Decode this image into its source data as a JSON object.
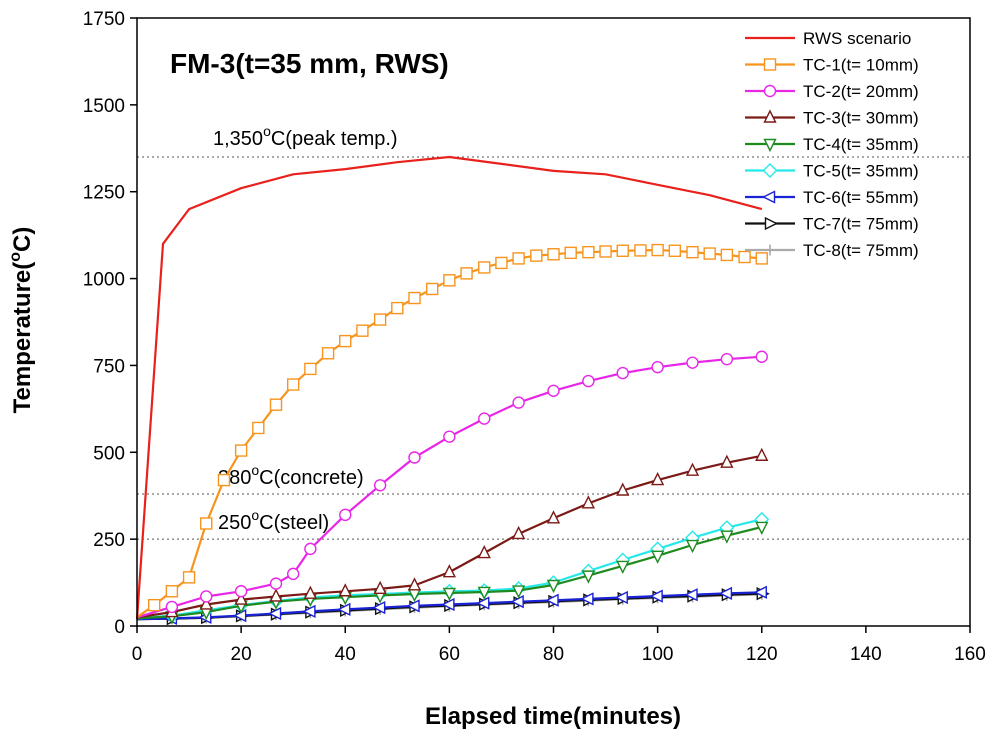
{
  "chart_data": {
    "type": "line",
    "title": "FM-3(t=35 mm, RWS)",
    "xlabel": "Elapsed time(minutes)",
    "ylabel": "Temperature(°C)",
    "xlim": [
      0,
      160
    ],
    "ylim": [
      0,
      1750
    ],
    "xticks": [
      "0",
      "20",
      "40",
      "60",
      "80",
      "100",
      "120",
      "140",
      "160"
    ],
    "yticks": [
      "0",
      "250",
      "500",
      "750",
      "1000",
      "1250",
      "1500",
      "1750"
    ],
    "grid": false,
    "legend_position": "top-right",
    "reference_lines": [
      {
        "y": 1350,
        "label": "1,350°C(peak temp.)"
      },
      {
        "y": 380,
        "label": "380°C(concrete)"
      },
      {
        "y": 250,
        "label": "250°C(steel)"
      }
    ],
    "series": [
      {
        "name": "RWS scenario",
        "color": "#e8211c",
        "marker": "none",
        "x": [
          0,
          5,
          10,
          20,
          30,
          40,
          50,
          60,
          70,
          80,
          90,
          100,
          110,
          120
        ],
        "y": [
          20,
          1100,
          1200,
          1260,
          1300,
          1315,
          1335,
          1350,
          1330,
          1310,
          1300,
          1270,
          1240,
          1200
        ]
      },
      {
        "name": "TC-1(t= 10mm)",
        "color": "#f7941d",
        "marker": "square",
        "x": [
          0,
          3.3,
          6.7,
          10,
          13.3,
          16.7,
          20,
          23.3,
          26.7,
          30,
          33.3,
          36.7,
          40,
          43.3,
          46.7,
          50,
          53.3,
          56.7,
          60,
          63.3,
          66.7,
          70,
          73.3,
          76.7,
          80,
          83.3,
          86.7,
          90,
          93.3,
          96.7,
          100,
          103.3,
          106.7,
          110,
          113.3,
          116.7,
          120
        ],
        "y": [
          25,
          60,
          100,
          140,
          295,
          420,
          505,
          570,
          637,
          695,
          740,
          785,
          820,
          850,
          882,
          915,
          944,
          970,
          995,
          1015,
          1032,
          1045,
          1058,
          1066,
          1070,
          1074,
          1076,
          1078,
          1080,
          1081,
          1082,
          1080,
          1076,
          1072,
          1068,
          1062,
          1058
        ]
      },
      {
        "name": "TC-2(t= 20mm)",
        "color": "#e826e8",
        "marker": "circle",
        "x": [
          0,
          6.7,
          13.3,
          20,
          26.7,
          30,
          33.3,
          40,
          46.7,
          53.3,
          60,
          66.7,
          73.3,
          80,
          86.7,
          93.3,
          100,
          106.7,
          113.3,
          120
        ],
        "y": [
          25,
          55,
          85,
          100,
          122,
          150,
          222,
          320,
          405,
          485,
          545,
          597,
          643,
          677,
          705,
          728,
          745,
          758,
          768,
          775
        ]
      },
      {
        "name": "TC-3(t= 30mm)",
        "color": "#7b1a16",
        "marker": "triangle-up",
        "x": [
          0,
          6.7,
          13.3,
          20,
          26.7,
          33.3,
          40,
          46.7,
          53.3,
          60,
          66.7,
          73.3,
          80,
          86.7,
          93.3,
          100,
          106.7,
          113.3,
          120
        ],
        "y": [
          25,
          40,
          62,
          76,
          85,
          93,
          100,
          107,
          117,
          155,
          210,
          265,
          310,
          353,
          390,
          420,
          447,
          470,
          490
        ]
      },
      {
        "name": "TC-4(t= 35mm)",
        "color": "#1f8a1f",
        "marker": "triangle-down",
        "x": [
          0,
          6.7,
          13.3,
          20,
          26.7,
          33.3,
          40,
          46.7,
          53.3,
          60,
          66.7,
          73.3,
          80,
          86.7,
          93.3,
          100,
          106.7,
          113.3,
          120
        ],
        "y": [
          22,
          28,
          40,
          58,
          70,
          78,
          83,
          88,
          92,
          95,
          98,
          102,
          118,
          145,
          173,
          202,
          233,
          260,
          285
        ]
      },
      {
        "name": "TC-5(t= 35mm)",
        "color": "#26e8e8",
        "marker": "diamond",
        "x": [
          0,
          6.7,
          13.3,
          20,
          26.7,
          33.3,
          40,
          46.7,
          53.3,
          60,
          66.7,
          73.3,
          80,
          86.7,
          93.3,
          100,
          106.7,
          113.3,
          120
        ],
        "y": [
          22,
          30,
          45,
          60,
          72,
          82,
          88,
          92,
          96,
          100,
          102,
          108,
          125,
          158,
          190,
          222,
          254,
          283,
          307
        ]
      },
      {
        "name": "TC-6(t= 55mm)",
        "color": "#1a22d6",
        "marker": "triangle-left",
        "x": [
          0,
          6.7,
          13.3,
          20,
          26.7,
          33.3,
          40,
          46.7,
          53.3,
          60,
          66.7,
          73.3,
          80,
          86.7,
          93.3,
          100,
          106.7,
          113.3,
          120
        ],
        "y": [
          20,
          22,
          25,
          30,
          36,
          42,
          48,
          53,
          58,
          62,
          66,
          70,
          74,
          78,
          82,
          86,
          90,
          94,
          97
        ]
      },
      {
        "name": "TC-7(t= 75mm)",
        "color": "#111111",
        "marker": "triangle-right",
        "x": [
          0,
          6.7,
          13.3,
          20,
          26.7,
          33.3,
          40,
          46.7,
          53.3,
          60,
          66.7,
          73.3,
          80,
          86.7,
          93.3,
          100,
          106.7,
          113.3,
          120
        ],
        "y": [
          20,
          21,
          24,
          29,
          34,
          40,
          45,
          50,
          55,
          59,
          63,
          67,
          71,
          75,
          79,
          83,
          86,
          90,
          93
        ]
      },
      {
        "name": "TC-8(t= 75mm)",
        "color": "#aaaaaa",
        "marker": "plus",
        "x": [
          0,
          6.7,
          13.3,
          20,
          26.7,
          33.3,
          40,
          46.7,
          53.3,
          60,
          66.7,
          73.3,
          80,
          86.7,
          93.3,
          100,
          106.7,
          113.3,
          120
        ],
        "y": [
          20,
          21,
          23,
          28,
          33,
          38,
          43,
          48,
          53,
          57,
          61,
          65,
          69,
          73,
          77,
          81,
          84,
          88,
          91
        ]
      }
    ]
  }
}
